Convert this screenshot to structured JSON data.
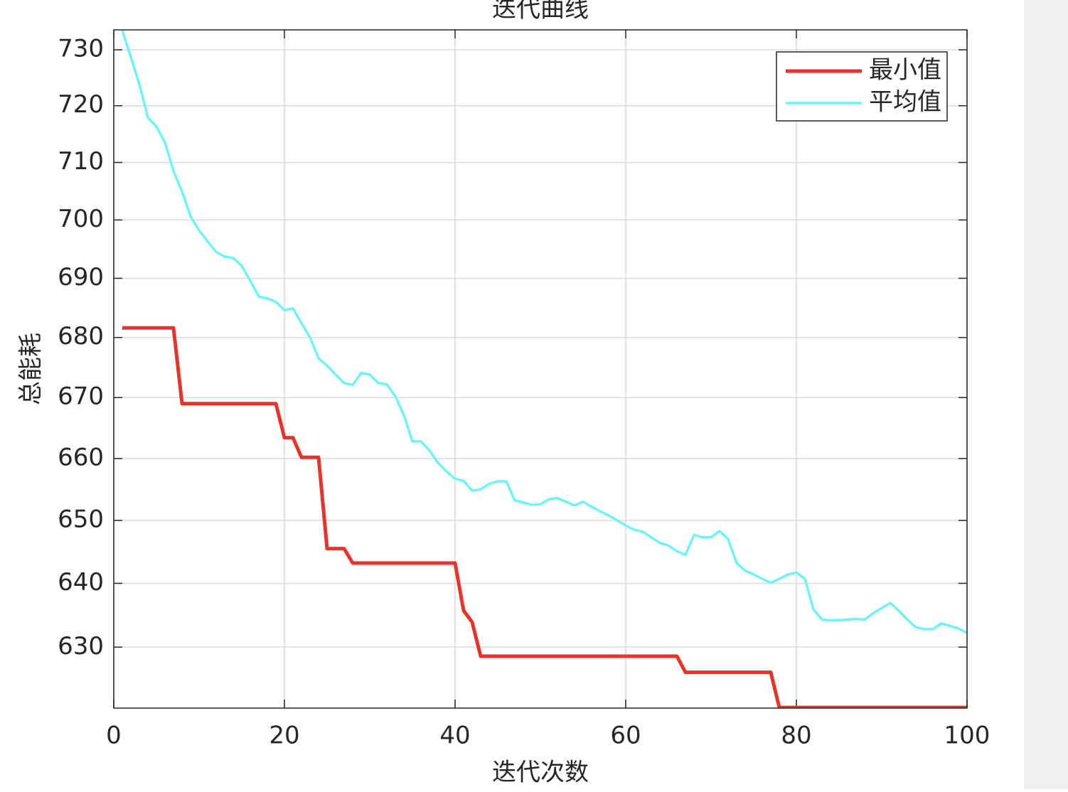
{
  "chart_data": {
    "type": "line",
    "title": "迭代曲线",
    "xlabel": "迭代次数",
    "ylabel": "总能耗",
    "x": [
      1,
      2,
      3,
      4,
      5,
      6,
      7,
      8,
      9,
      10,
      11,
      12,
      13,
      14,
      15,
      16,
      17,
      18,
      19,
      20,
      21,
      22,
      23,
      24,
      25,
      26,
      27,
      28,
      29,
      30,
      31,
      32,
      33,
      34,
      35,
      36,
      37,
      38,
      39,
      40,
      41,
      42,
      43,
      44,
      45,
      46,
      47,
      48,
      49,
      50,
      51,
      52,
      53,
      54,
      55,
      56,
      57,
      58,
      59,
      60,
      61,
      62,
      63,
      64,
      65,
      66,
      67,
      68,
      69,
      70,
      71,
      72,
      73,
      74,
      75,
      76,
      77,
      78,
      79,
      80,
      81,
      82,
      83,
      84,
      85,
      86,
      87,
      88,
      89,
      90,
      91,
      92,
      93,
      94,
      95,
      96,
      97,
      98,
      99,
      100
    ],
    "series": [
      {
        "name": "最小值",
        "color": "#e8332b",
        "width": 5,
        "values": [
          681.6,
          681.6,
          681.6,
          681.6,
          681.6,
          681.6,
          681.6,
          669.0,
          669.0,
          669.0,
          669.0,
          669.0,
          669.0,
          669.0,
          669.0,
          669.0,
          669.0,
          669.0,
          669.0,
          663.4,
          663.4,
          660.2,
          660.2,
          660.2,
          645.5,
          645.5,
          645.5,
          643.2,
          643.2,
          643.2,
          643.2,
          643.2,
          643.2,
          643.2,
          643.2,
          643.2,
          643.2,
          643.2,
          643.2,
          643.2,
          635.7,
          633.9,
          628.6,
          628.6,
          628.6,
          628.6,
          628.6,
          628.6,
          628.6,
          628.6,
          628.6,
          628.6,
          628.6,
          628.6,
          628.6,
          628.6,
          628.6,
          628.6,
          628.6,
          628.6,
          628.6,
          628.6,
          628.6,
          628.6,
          628.6,
          628.6,
          626.1,
          626.1,
          626.1,
          626.1,
          626.1,
          626.1,
          626.1,
          626.1,
          626.1,
          626.1,
          626.1,
          620.7,
          620.7,
          620.7,
          620.7,
          620.7,
          620.7,
          620.7,
          620.7,
          620.7,
          620.7,
          620.7,
          620.7,
          620.7,
          620.7,
          620.7,
          620.7,
          620.7,
          620.7,
          620.7,
          620.7,
          620.7,
          620.7,
          620.7
        ]
      },
      {
        "name": "平均值",
        "color": "#6ef3fa",
        "width": 3.5,
        "values": [
          733.5,
          728.7,
          723.8,
          717.9,
          716.3,
          713.5,
          708.5,
          704.9,
          700.6,
          698.2,
          696.3,
          694.5,
          693.7,
          693.5,
          692.1,
          689.6,
          686.9,
          686.6,
          686.0,
          684.6,
          684.9,
          682.4,
          680.0,
          676.5,
          675.3,
          673.8,
          672.4,
          672.1,
          674.1,
          673.8,
          672.4,
          672.2,
          670.2,
          667.1,
          662.8,
          662.8,
          661.3,
          659.3,
          657.9,
          656.7,
          656.4,
          654.8,
          655.0,
          655.9,
          656.3,
          656.3,
          653.2,
          652.9,
          652.5,
          652.6,
          653.4,
          653.6,
          653.0,
          652.4,
          653.0,
          652.2,
          651.5,
          650.8,
          650.0,
          649.2,
          648.5,
          648.2,
          647.3,
          646.4,
          646.0,
          645.1,
          644.5,
          647.7,
          647.3,
          647.3,
          648.3,
          647.0,
          643.2,
          642.0,
          641.4,
          640.7,
          640.1,
          640.7,
          641.4,
          641.7,
          640.7,
          635.9,
          634.3,
          634.2,
          634.2,
          634.3,
          634.4,
          634.3,
          635.3,
          636.1,
          636.9,
          635.7,
          634.3,
          633.1,
          632.8,
          632.8,
          633.7,
          633.3,
          632.9,
          632.2
        ]
      }
    ],
    "xlim": [
      0,
      100
    ],
    "xticks": [
      0,
      20,
      40,
      60,
      80,
      100
    ],
    "ylim": [
      620.6,
      733.6
    ],
    "yticks": [
      630,
      640,
      650,
      660,
      670,
      680,
      690,
      700,
      710,
      720,
      730
    ],
    "yscale": "log",
    "grid": true,
    "legend": "northeast"
  }
}
